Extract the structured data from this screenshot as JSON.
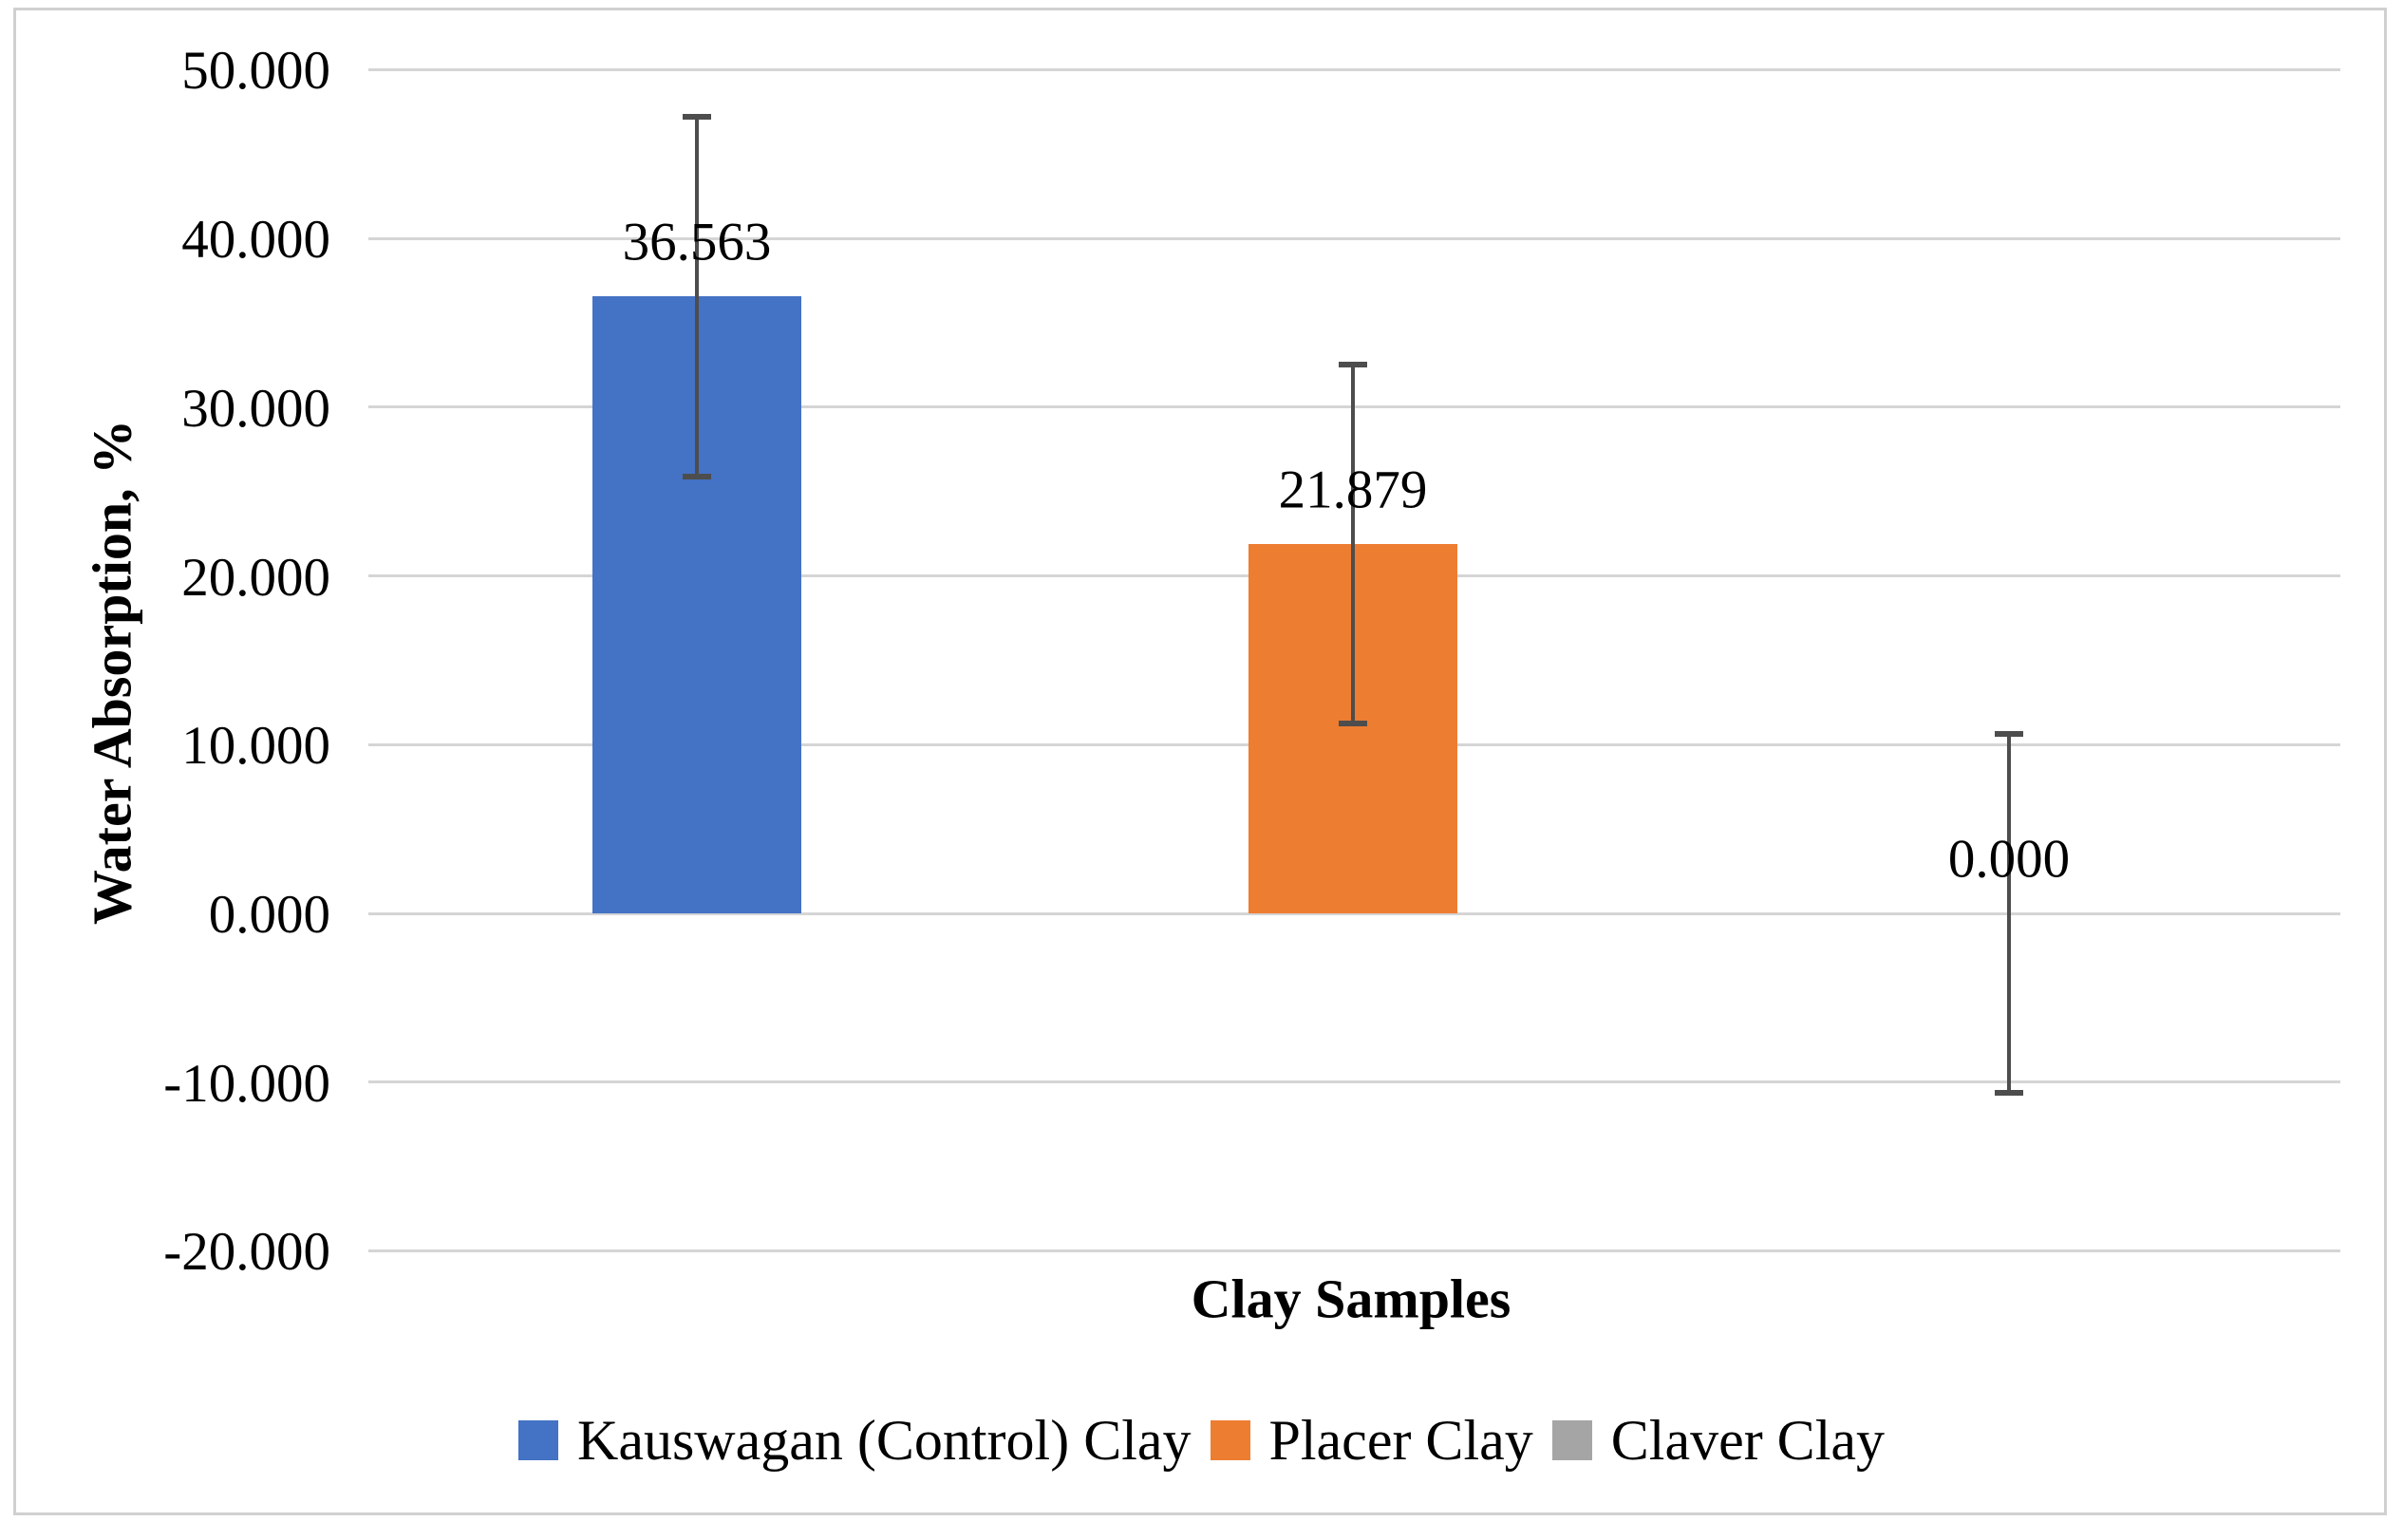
{
  "figure": {
    "background": "#FFFFFF",
    "border_color": "#D0D0D0"
  },
  "chart_data": {
    "type": "bar",
    "title": "",
    "categories": [
      "Kauswagan (Control) Clay",
      "Placer Clay",
      "Claver Clay"
    ],
    "values": [
      36.563,
      21.879,
      0.0
    ],
    "data_labels": [
      "36.563",
      "21.879",
      "0.000"
    ],
    "error_bars_plus_minus": [
      10.65,
      10.65,
      10.65
    ],
    "bar_colors": [
      "#4472C4",
      "#ED7D31",
      "#A5A5A5"
    ],
    "xlabel": "Clay Samples",
    "ylabel": "Water Absorption, %",
    "ylim": [
      -20,
      50
    ],
    "ytick_interval": 10,
    "ytick_labels": [
      "50.000",
      "40.000",
      "30.000",
      "20.000",
      "10.000",
      "0.000",
      "-10.000",
      "-20.000"
    ],
    "grid": true,
    "gridline_color": "#D5D5D5",
    "error_bar_color": "#4D4D4D",
    "text_color": "#000000",
    "legend_position": "bottom",
    "legend": [
      {
        "label": "Kauswagan (Control) Clay",
        "color": "#4472C4"
      },
      {
        "label": "Placer Clay",
        "color": "#ED7D31"
      },
      {
        "label": "Claver Clay",
        "color": "#A5A5A5"
      }
    ]
  }
}
